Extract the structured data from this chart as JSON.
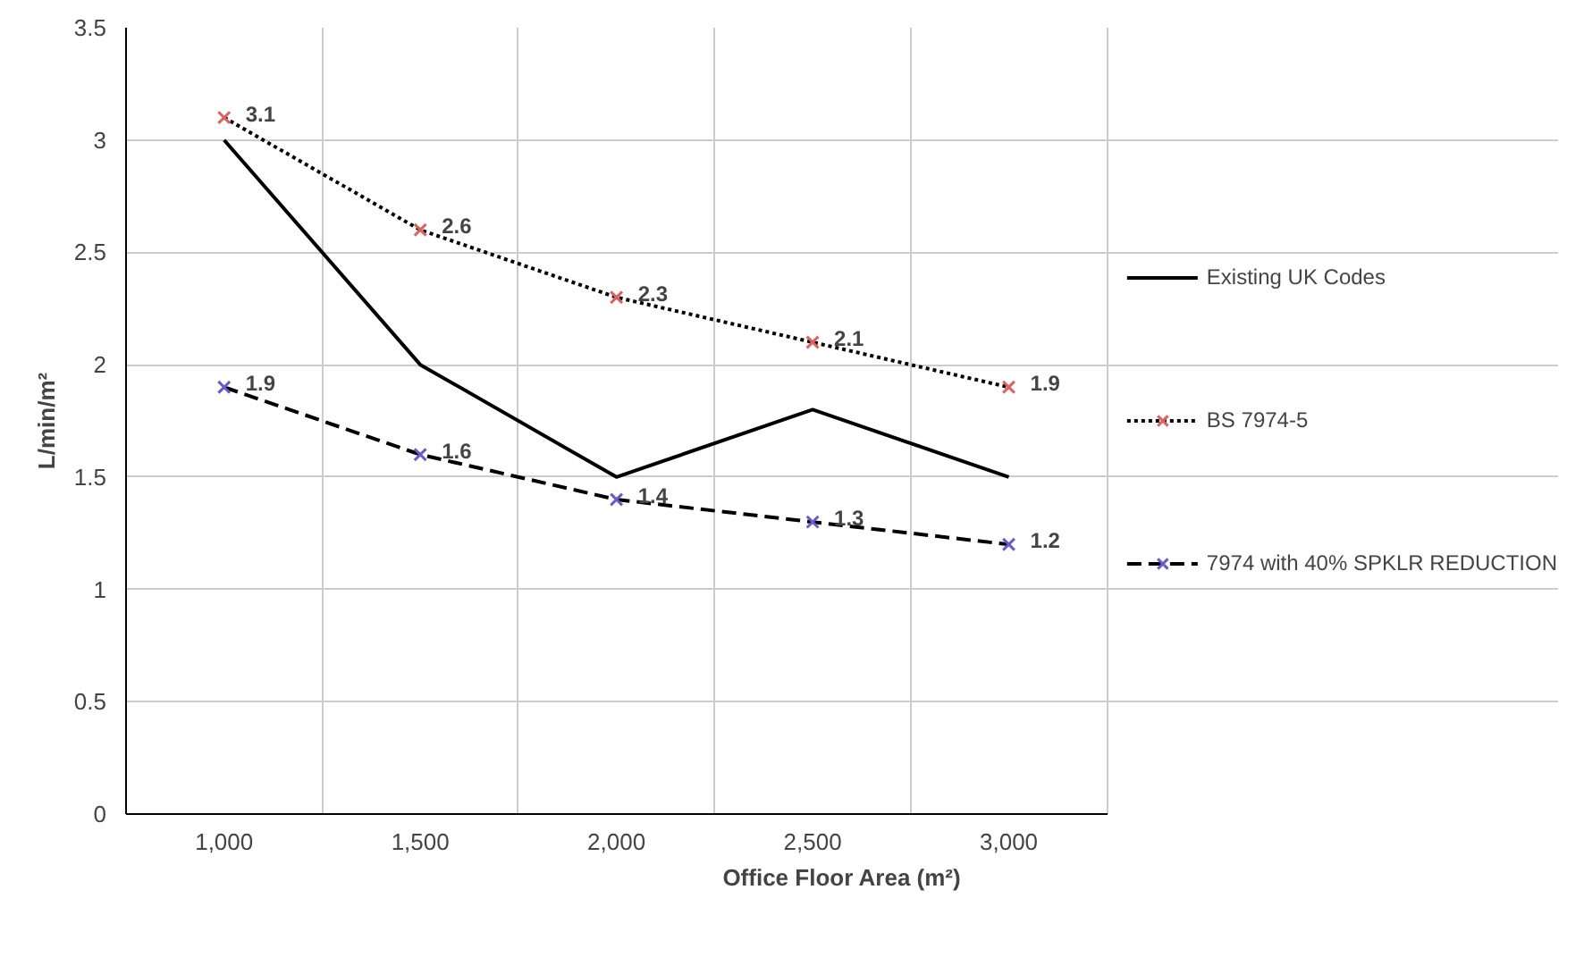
{
  "chart_data": {
    "type": "line",
    "xlabel": "Office Floor Area (m²)",
    "ylabel": "L/min/m²",
    "categories": [
      "1,000",
      "1,500",
      "2,000",
      "2,500",
      "3,000"
    ],
    "series": [
      {
        "name": "Existing UK Codes",
        "color": "#000000",
        "values": [
          3,
          2,
          1.5,
          1.8,
          1.5
        ],
        "line_style": "solid",
        "marker": "none"
      },
      {
        "name": "BS 7974-5",
        "color": "#000000",
        "colors": [
          "#e06060",
          "#e06060",
          "#e06060",
          "#e06060",
          "#e06060"
        ],
        "values": [
          3.1,
          2.6,
          2.3,
          2.1,
          1.9
        ],
        "line_style": "dotted",
        "marker": "cross",
        "value_labels": [
          "3.1",
          "2.6",
          "2.3",
          "2.1",
          "1.9"
        ]
      },
      {
        "name": "7974 with 40% SPKLR REDUCTION",
        "color": "#000000",
        "colors": [
          "#6a5acd",
          "#6a5acd",
          "#6a5acd",
          "#6a5acd",
          "#6a5acd"
        ],
        "values": [
          1.9,
          1.6,
          1.4,
          1.3,
          1.2
        ],
        "line_style": "dashed",
        "marker": "cross",
        "value_labels": [
          "1.9",
          "1.6",
          "1.4",
          "1.3",
          "1.2"
        ]
      }
    ],
    "ylim": [
      0,
      3.5
    ],
    "yticks": [
      0,
      0.5,
      1,
      1.5,
      2,
      2.5,
      3,
      3.5
    ],
    "grid": true,
    "legend": "right"
  }
}
